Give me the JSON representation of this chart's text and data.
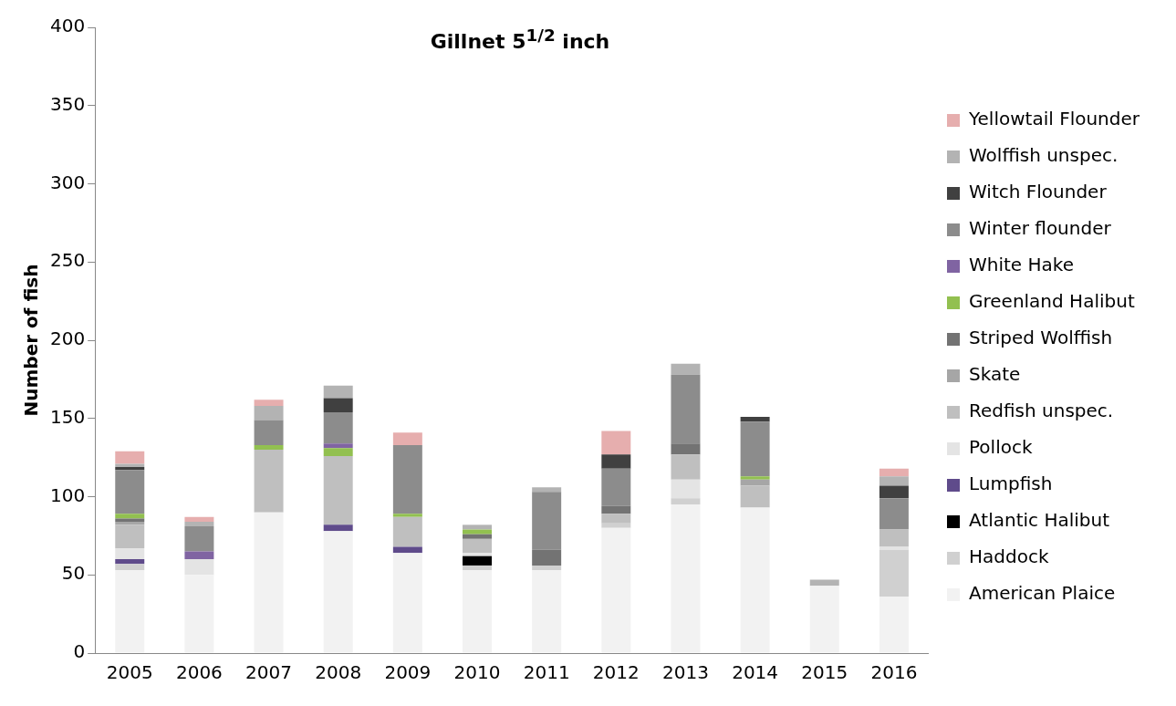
{
  "chart_data": {
    "type": "bar",
    "title": "Gillnet 5$^{1/2}$ inch",
    "ylabel": "Number of fish",
    "stacked": true,
    "grid": false,
    "legend": "right",
    "categories": [
      "2005",
      "2006",
      "2007",
      "2008",
      "2009",
      "2010",
      "2011",
      "2012",
      "2013",
      "2014",
      "2015",
      "2016"
    ],
    "ylim": [
      0,
      400
    ],
    "yticks": [
      0,
      50,
      100,
      150,
      200,
      250,
      300,
      350,
      400
    ],
    "series": [
      {
        "name": "American Plaice",
        "color": "#f2f2f2",
        "values": [
          53,
          50,
          90,
          78,
          64,
          53,
          53,
          80,
          95,
          93,
          43,
          36
        ]
      },
      {
        "name": "Haddock",
        "color": "#d0d0d0",
        "values": [
          4,
          0,
          0,
          0,
          0,
          3,
          3,
          3,
          4,
          0,
          0,
          30
        ]
      },
      {
        "name": "Atlantic Halibut",
        "color": "#000000",
        "values": [
          0,
          0,
          0,
          0,
          0,
          6,
          0,
          0,
          0,
          0,
          0,
          0
        ]
      },
      {
        "name": "Lumpfish",
        "color": "#5f4b8b",
        "values": [
          3,
          0,
          0,
          4,
          4,
          0,
          0,
          0,
          0,
          0,
          0,
          0
        ]
      },
      {
        "name": "Pollock",
        "color": "#e4e4e4",
        "values": [
          7,
          10,
          0,
          0,
          0,
          2,
          0,
          0,
          12,
          0,
          0,
          2
        ]
      },
      {
        "name": "Redfish unspec.",
        "color": "#bfbfbf",
        "values": [
          15,
          0,
          40,
          44,
          19,
          9,
          0,
          6,
          16,
          14,
          0,
          11
        ]
      },
      {
        "name": "Skate",
        "color": "#a6a6a6",
        "values": [
          2,
          0,
          0,
          0,
          0,
          0,
          0,
          0,
          0,
          4,
          0,
          0
        ]
      },
      {
        "name": "Striped Wolffish",
        "color": "#737373",
        "values": [
          2,
          0,
          0,
          0,
          0,
          3,
          10,
          5,
          7,
          0,
          0,
          0
        ]
      },
      {
        "name": "Greenland Halibut",
        "color": "#92c050",
        "values": [
          3,
          0,
          3,
          5,
          2,
          3,
          0,
          0,
          0,
          2,
          0,
          0
        ]
      },
      {
        "name": "White Hake",
        "color": "#8064a2",
        "values": [
          0,
          5,
          0,
          3,
          0,
          0,
          0,
          0,
          0,
          0,
          0,
          0
        ]
      },
      {
        "name": "Winter flounder",
        "color": "#8c8c8c",
        "values": [
          28,
          16,
          16,
          20,
          44,
          0,
          37,
          24,
          44,
          35,
          0,
          20
        ]
      },
      {
        "name": "Witch Flounder",
        "color": "#404040",
        "values": [
          2,
          0,
          0,
          9,
          0,
          0,
          0,
          9,
          0,
          3,
          0,
          8
        ]
      },
      {
        "name": "Wolffish unspec.",
        "color": "#b3b3b3",
        "values": [
          2,
          3,
          9,
          8,
          0,
          3,
          3,
          0,
          7,
          0,
          4,
          6
        ]
      },
      {
        "name": "Yellowtail Flounder",
        "color": "#e6aeae",
        "values": [
          8,
          3,
          4,
          0,
          8,
          0,
          0,
          15,
          0,
          0,
          0,
          5
        ]
      }
    ]
  }
}
